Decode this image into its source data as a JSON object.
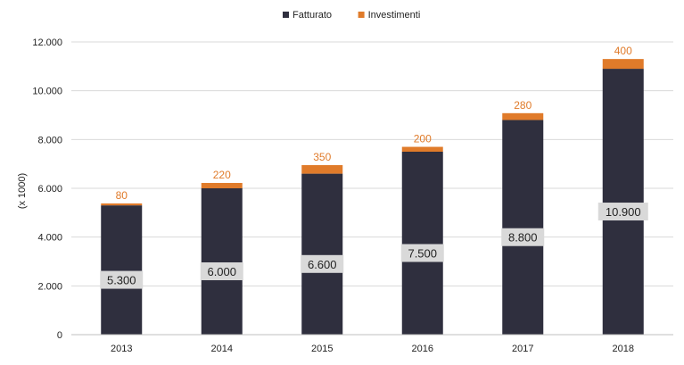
{
  "chart_data": {
    "type": "bar",
    "stacked": true,
    "categories": [
      "2013",
      "2014",
      "2015",
      "2016",
      "2017",
      "2018"
    ],
    "series": [
      {
        "name": "Fatturato",
        "values": [
          5300,
          6000,
          6600,
          7500,
          8800,
          10900
        ],
        "color": "#2f2f3e",
        "labels": [
          "5.300",
          "6.000",
          "6.600",
          "7.500",
          "8.800",
          "10.900"
        ]
      },
      {
        "name": "Investimenti",
        "values": [
          80,
          220,
          350,
          200,
          280,
          400
        ],
        "color": "#e07b2a",
        "labels": [
          "80",
          "220",
          "350",
          "200",
          "280",
          "400"
        ]
      }
    ],
    "ylabel": "(x 1000)",
    "ylim": [
      0,
      12000
    ],
    "yticks": [
      0,
      2000,
      4000,
      6000,
      8000,
      10000,
      12000
    ],
    "ytick_labels": [
      "0",
      "2.000",
      "4.000",
      "6.000",
      "8.000",
      "10.000",
      "12.000"
    ],
    "grid": true,
    "legend_position": "top-center"
  }
}
